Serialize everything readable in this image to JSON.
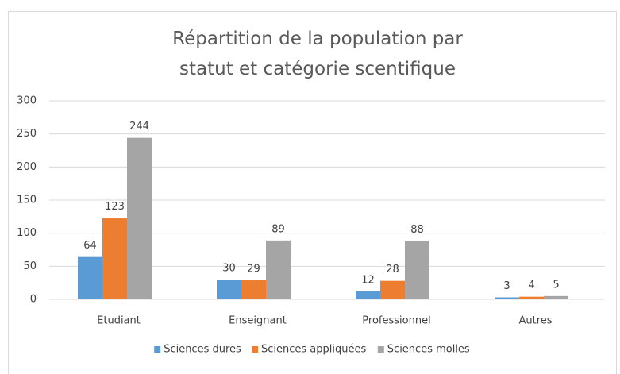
{
  "chart_data": {
    "type": "bar",
    "title": "Répartition de la population par statut et catégorie scentifique",
    "categories": [
      "Etudiant",
      "Enseignant",
      "Professionnel",
      "Autres"
    ],
    "series": [
      {
        "name": "Sciences dures",
        "color": "#5b9bd5",
        "values": [
          64,
          30,
          12,
          3
        ]
      },
      {
        "name": "Sciences appliquées",
        "color": "#ed7d31",
        "values": [
          123,
          29,
          28,
          4
        ]
      },
      {
        "name": "Sciences molles",
        "color": "#a5a5a5",
        "values": [
          244,
          89,
          88,
          5
        ]
      }
    ],
    "ylim": [
      0,
      300
    ],
    "yticks": [
      0,
      50,
      100,
      150,
      200,
      250,
      300
    ],
    "grid": true,
    "legend": "bottom"
  }
}
